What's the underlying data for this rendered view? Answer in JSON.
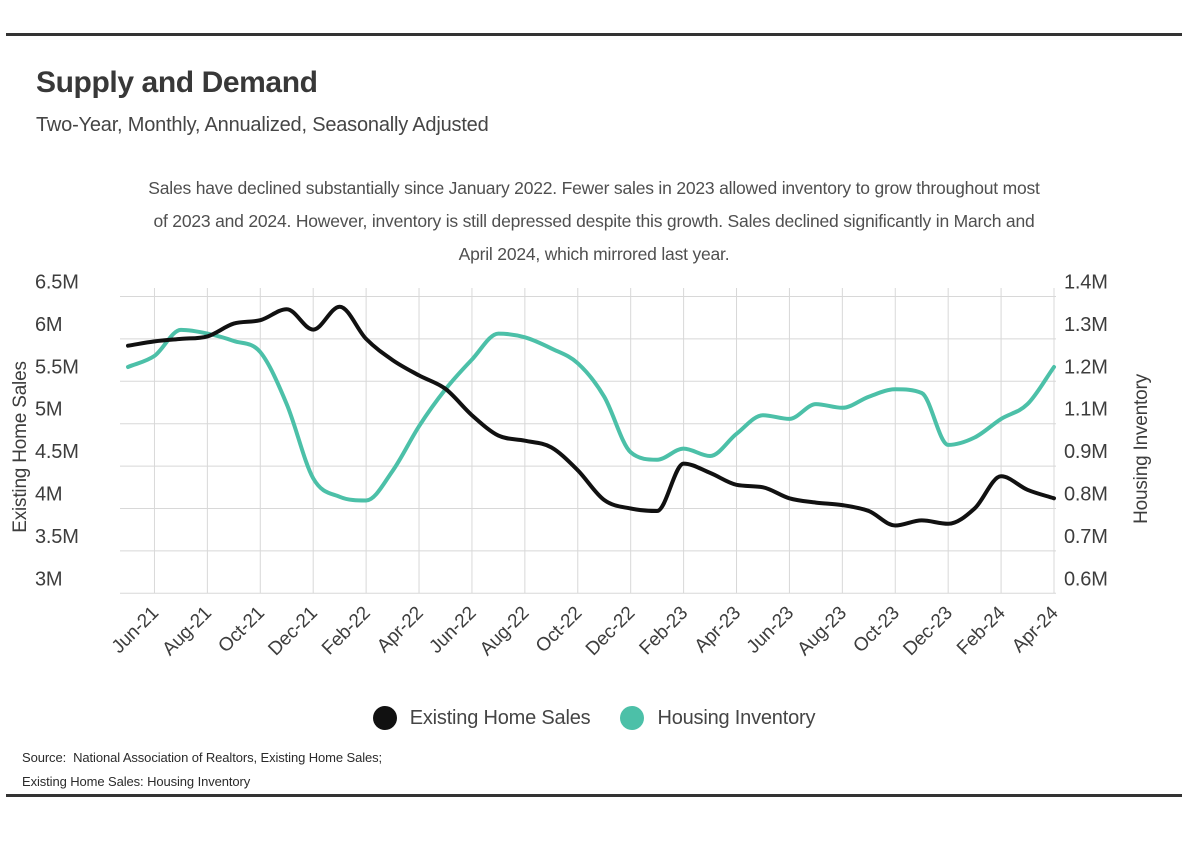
{
  "page": {
    "title": "Supply and Demand",
    "subtitle": "Two-Year, Monthly, Annualized, Seasonally Adjusted",
    "description_lines": [
      "Sales have declined substantially since January 2022. Fewer sales in 2023 allowed inventory to grow throughout most",
      "of 2023 and 2024. However, inventory is still depressed despite this growth. Sales declined significantly in March and",
      "April 2024, which mirrored last year."
    ],
    "source_line1": "Source:  National Association of Realtors, Existing Home Sales;",
    "source_line2": "Existing Home Sales: Housing Inventory"
  },
  "legend": {
    "items": [
      {
        "label": "Existing Home Sales",
        "color": "#111111"
      },
      {
        "label": "Housing Inventory",
        "color": "#4cc0a8"
      }
    ]
  },
  "colors": {
    "sales_line": "#111111",
    "inventory_line": "#4cc0a8",
    "gridline": "#d8d8d8",
    "axis_text": "#3d3d3d"
  },
  "chart_data": {
    "type": "line",
    "title": "Supply and Demand",
    "subtitle": "Two-Year, Monthly, Annualized, Seasonally Adjusted",
    "x_unit": "month",
    "x": [
      "May-21",
      "Jun-21",
      "Jul-21",
      "Aug-21",
      "Sep-21",
      "Oct-21",
      "Nov-21",
      "Dec-21",
      "Jan-22",
      "Feb-22",
      "Mar-22",
      "Apr-22",
      "May-22",
      "Jun-22",
      "Jul-22",
      "Aug-22",
      "Sep-22",
      "Oct-22",
      "Nov-22",
      "Dec-22",
      "Jan-23",
      "Feb-23",
      "Mar-23",
      "Apr-23",
      "May-23",
      "Jun-23",
      "Jul-23",
      "Aug-23",
      "Sep-23",
      "Oct-23",
      "Nov-23",
      "Dec-23",
      "Jan-24",
      "Feb-24",
      "Mar-24",
      "Apr-24"
    ],
    "x_tick_labels": [
      "Jun-21",
      "Aug-21",
      "Oct-21",
      "Dec-21",
      "Feb-22",
      "Apr-22",
      "Jun-22",
      "Aug-22",
      "Oct-22",
      "Dec-22",
      "Feb-23",
      "Apr-23",
      "Jun-23",
      "Aug-23",
      "Oct-23",
      "Dec-23",
      "Feb-24",
      "Apr-24"
    ],
    "series": [
      {
        "name": "Housing Inventory",
        "axis": "right",
        "color": "#4cc0a8",
        "values": [
          1.21,
          1.24,
          1.31,
          1.3,
          1.28,
          1.25,
          1.11,
          0.91,
          0.86,
          0.85,
          0.93,
          1.05,
          1.15,
          1.23,
          1.3,
          1.29,
          1.26,
          1.22,
          1.13,
          0.98,
          0.96,
          0.99,
          0.97,
          1.03,
          1.08,
          1.07,
          1.11,
          1.1,
          1.13,
          1.15,
          1.14,
          1.0,
          1.02,
          1.07,
          1.11,
          1.21
        ]
      },
      {
        "name": "Existing Home Sales",
        "axis": "left",
        "color": "#111111",
        "values": [
          5.92,
          5.97,
          6.0,
          6.03,
          6.18,
          6.22,
          6.35,
          6.11,
          6.38,
          6.0,
          5.75,
          5.57,
          5.41,
          5.1,
          4.86,
          4.8,
          4.72,
          4.45,
          4.1,
          4.0,
          3.97,
          4.53,
          4.42,
          4.28,
          4.25,
          4.12,
          4.07,
          4.04,
          3.97,
          3.8,
          3.86,
          3.82,
          4.0,
          4.38,
          4.22,
          4.12
        ]
      }
    ],
    "left_axis": {
      "title": "Existing Home Sales",
      "min": 3.0,
      "max": 6.5,
      "tick_labels": [
        "6.5M",
        "6M",
        "5.5M",
        "5M",
        "4.5M",
        "4M",
        "3.5M",
        "3M"
      ]
    },
    "right_axis": {
      "title": "Housing Inventory",
      "min": 0.6,
      "max": 1.4,
      "tick_labels": [
        "1.4M",
        "1.3M",
        "1.2M",
        "1.1M",
        "0.9M",
        "0.8M",
        "0.7M",
        "0.6M"
      ]
    },
    "grid": true,
    "legend_position": "bottom"
  }
}
